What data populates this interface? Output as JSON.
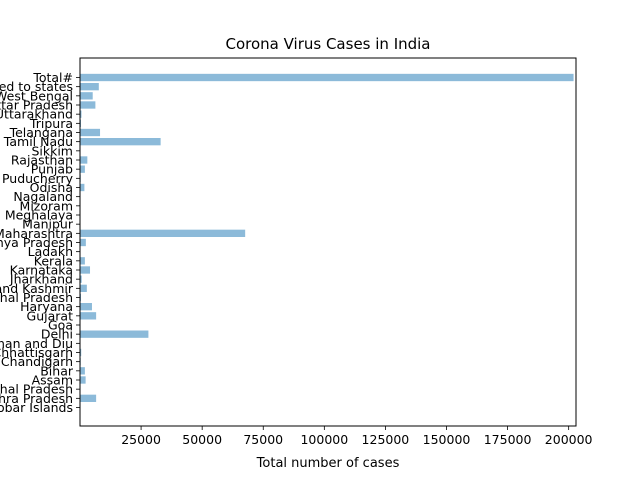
{
  "chart_data": {
    "type": "bar",
    "orientation": "horizontal",
    "title": "Corona Virus Cases in India",
    "xlabel": "Total number of cases",
    "ylabel": "",
    "xlim": [
      0,
      203000
    ],
    "xticks": [
      25000,
      50000,
      75000,
      100000,
      125000,
      150000,
      175000,
      200000
    ],
    "grid": false,
    "bar_color": "#8cbad9",
    "categories": [
      "Total#",
      "Cases being reassigned to states",
      "West Bengal",
      "Uttar Pradesh",
      "Uttarakhand",
      "Tripura",
      "Telangana",
      "Tamil Nadu",
      "Sikkim",
      "Rajasthan",
      "Punjab",
      "Puducherry",
      "Odisha",
      "Nagaland",
      "Mizoram",
      "Meghalaya",
      "Manipur",
      "Maharashtra",
      "Madhya Pradesh",
      "Ladakh",
      "Kerala",
      "Karnataka",
      "Jharkhand",
      "Jammu and Kashmir",
      "Himachal Pradesh",
      "Haryana",
      "Gujarat",
      "Goa",
      "Delhi",
      "Dadra and Nagar Haveli and Daman and Diu",
      "Chhattisgarh",
      "Chandigarh",
      "Bihar",
      "Assam",
      "Arunachal Pradesh",
      "Andhra Pradesh",
      "Andaman and Nicobar Islands"
    ],
    "values": [
      202000,
      7700,
      5200,
      6300,
      600,
      400,
      8200,
      33000,
      50,
      3000,
      2000,
      300,
      1800,
      50,
      50,
      30,
      80,
      67600,
      2400,
      80,
      2000,
      4100,
      700,
      2800,
      400,
      4900,
      6600,
      50,
      28000,
      30,
      500,
      300,
      2000,
      2300,
      20,
      6600,
      30
    ]
  }
}
